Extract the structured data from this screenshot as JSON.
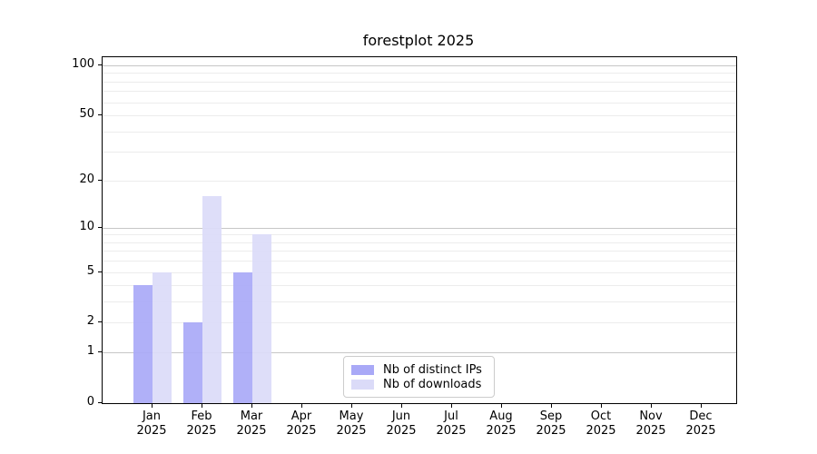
{
  "title": "forestplot 2025",
  "colors": {
    "background": "#ffffff",
    "axis": "#000000",
    "grid_major": "#c6c6c6",
    "grid_minor": "#ececec",
    "legend_border": "#cccccc",
    "text": "#000000"
  },
  "legend": {
    "items": [
      {
        "label": "Nb of distinct IPs",
        "swatch": "ips-swatch"
      },
      {
        "label": "Nb of downloads",
        "swatch": "downloads-swatch"
      }
    ]
  },
  "chart_data": {
    "type": "bar",
    "title": "forestplot 2025",
    "categories": [
      "Jan 2025",
      "Feb 2025",
      "Mar 2025",
      "Apr 2025",
      "May 2025",
      "Jun 2025",
      "Jul 2025",
      "Aug 2025",
      "Sep 2025",
      "Oct 2025",
      "Nov 2025",
      "Dec 2025"
    ],
    "months": [
      "Jan",
      "Feb",
      "Mar",
      "Apr",
      "May",
      "Jun",
      "Jul",
      "Aug",
      "Sep",
      "Oct",
      "Nov",
      "Dec"
    ],
    "year": "2025",
    "series": [
      {
        "name": "Nb of distinct IPs",
        "color": "#a9a9f7",
        "values": [
          4,
          2,
          5,
          0,
          0,
          0,
          0,
          0,
          0,
          0,
          0,
          0
        ]
      },
      {
        "name": "Nb of downloads",
        "color": "#dbdbf8",
        "values": [
          5,
          16,
          9,
          0,
          0,
          0,
          0,
          0,
          0,
          0,
          0,
          0
        ]
      }
    ],
    "xlabel": "",
    "ylabel": "",
    "yscale": "log1p",
    "ylim": [
      0,
      112
    ],
    "yticks": [
      0,
      1,
      2,
      5,
      10,
      20,
      50,
      100
    ],
    "gridlines_major": [
      1,
      10,
      100
    ],
    "gridlines_minor": [
      2,
      3,
      4,
      5,
      6,
      7,
      8,
      9,
      20,
      30,
      40,
      50,
      60,
      70,
      80,
      90
    ],
    "grid": true,
    "legend_position": "lower center"
  }
}
